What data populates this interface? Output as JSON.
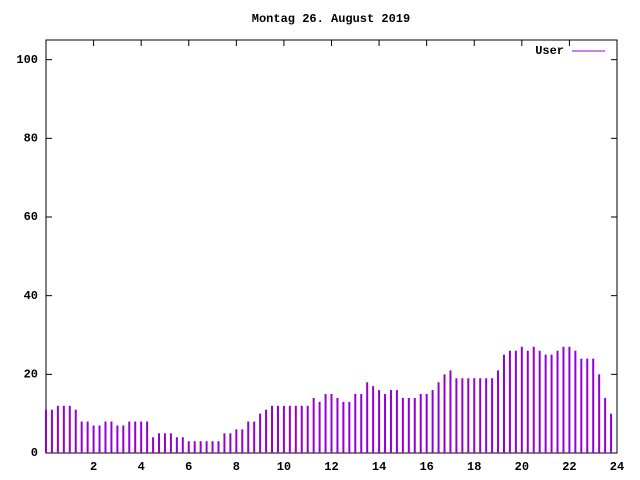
{
  "chart_data": {
    "type": "impulse",
    "title": "Montag 26. August 2019",
    "x": [
      0,
      0.25,
      0.5,
      0.75,
      1,
      1.25,
      1.5,
      1.75,
      2,
      2.25,
      2.5,
      2.75,
      3,
      3.25,
      3.5,
      3.75,
      4,
      4.25,
      4.5,
      4.75,
      5,
      5.25,
      5.5,
      5.75,
      6,
      6.25,
      6.5,
      6.75,
      7,
      7.25,
      7.5,
      7.75,
      8,
      8.25,
      8.5,
      8.75,
      9,
      9.25,
      9.5,
      9.75,
      10,
      10.25,
      10.5,
      10.75,
      11,
      11.25,
      11.5,
      11.75,
      12,
      12.25,
      12.5,
      12.75,
      13,
      13.25,
      13.5,
      13.75,
      14,
      14.25,
      14.5,
      14.75,
      15,
      15.25,
      15.5,
      15.75,
      16,
      16.25,
      16.5,
      16.75,
      17,
      17.25,
      17.5,
      17.75,
      18,
      18.25,
      18.5,
      18.75,
      19,
      19.25,
      19.5,
      19.75,
      20,
      20.25,
      20.5,
      20.75,
      21,
      21.25,
      21.5,
      21.75,
      22,
      22.25,
      22.5,
      22.75,
      23,
      23.25,
      23.5,
      23.75
    ],
    "series": [
      {
        "name": "User",
        "color": "#9400d3",
        "values": [
          11,
          11,
          12,
          12,
          12,
          11,
          8,
          8,
          7,
          7,
          8,
          8,
          7,
          7,
          8,
          8,
          8,
          8,
          4,
          5,
          5,
          5,
          4,
          4,
          3,
          3,
          3,
          3,
          3,
          3,
          5,
          5,
          6,
          6,
          8,
          8,
          10,
          11,
          12,
          12,
          12,
          12,
          12,
          12,
          12,
          14,
          13,
          15,
          15,
          14,
          13,
          13,
          15,
          15,
          18,
          17,
          16,
          15,
          16,
          16,
          14,
          14,
          14,
          15,
          15,
          16,
          18,
          20,
          21,
          19,
          19,
          19,
          19,
          19,
          19,
          19,
          21,
          25,
          26,
          26,
          27,
          26,
          27,
          26,
          25,
          25,
          26,
          27,
          27,
          26,
          24,
          24,
          24,
          20,
          14,
          10
        ]
      }
    ],
    "xlim": [
      0,
      24
    ],
    "xticks": [
      2,
      4,
      6,
      8,
      10,
      12,
      14,
      16,
      18,
      20,
      22,
      24
    ],
    "ylim": [
      0,
      105
    ],
    "yticks": [
      0,
      20,
      40,
      60,
      80,
      100
    ],
    "grid": false,
    "legend": "top-right"
  }
}
